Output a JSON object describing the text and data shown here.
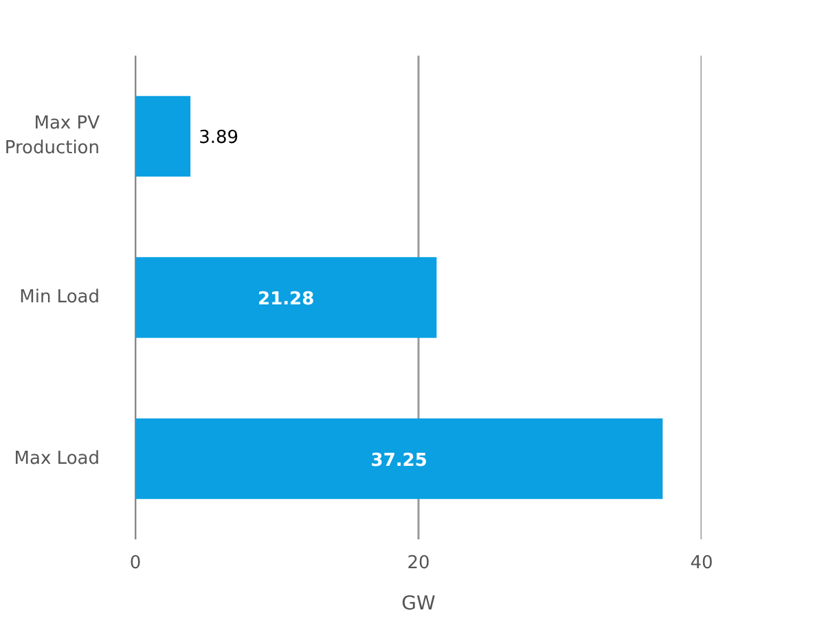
{
  "chart_data": {
    "type": "bar",
    "orientation": "horizontal",
    "categories": [
      "Max PV Production",
      "Min Load",
      "Max Load"
    ],
    "values": [
      3.89,
      21.28,
      37.25
    ],
    "color": "#0aa0e2",
    "xlim": [
      0,
      40
    ],
    "xticks": [
      0,
      20,
      40
    ],
    "xlabel": "GW",
    "grid": "x",
    "data_labels": true
  }
}
